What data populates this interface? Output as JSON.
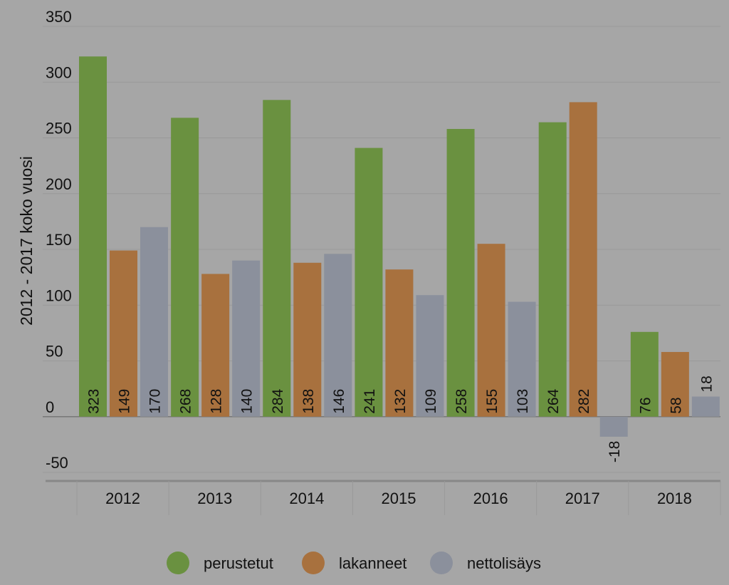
{
  "chart_data": {
    "type": "bar",
    "title": "",
    "xlabel": "",
    "ylabel": "2012 - 2017 koko vuosi",
    "ylim": [
      -50,
      350
    ],
    "yticks": [
      350,
      300,
      250,
      200,
      150,
      100,
      50,
      0,
      -50
    ],
    "grid": true,
    "legend_position": "bottom-center",
    "categories": [
      "2012",
      "2013",
      "2014",
      "2015",
      "2016",
      "2017",
      "2018"
    ],
    "series": [
      {
        "name": "perustetut",
        "color": "#6a9140",
        "values": [
          323,
          268,
          284,
          241,
          258,
          264,
          76
        ]
      },
      {
        "name": "lakanneet",
        "color": "#a8713e",
        "values": [
          149,
          128,
          138,
          132,
          155,
          282,
          58
        ]
      },
      {
        "name": "nettolisäys",
        "color": "#8b909c",
        "values": [
          170,
          140,
          146,
          109,
          103,
          -18,
          18
        ]
      }
    ],
    "data_labels": [
      [
        "323",
        "149",
        "170"
      ],
      [
        "268",
        "128",
        "140"
      ],
      [
        "284",
        "138",
        "146"
      ],
      [
        "241",
        "132",
        "109"
      ],
      [
        "258",
        "155",
        "103"
      ],
      [
        "264",
        "282",
        "-18"
      ],
      [
        "76",
        "58",
        "18"
      ]
    ]
  }
}
